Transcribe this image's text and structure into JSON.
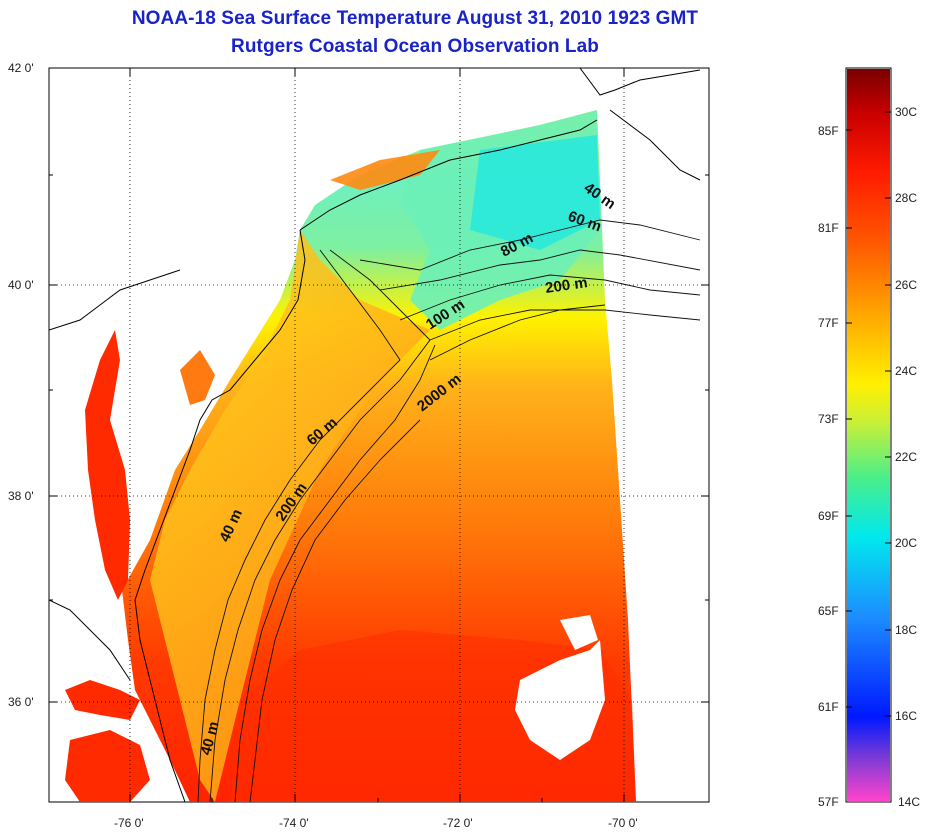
{
  "title": {
    "line1": "NOAA-18 Sea Surface Temperature August 31, 2010 1923 GMT",
    "line2": "Rutgers Coastal Ocean Observation Lab"
  },
  "map": {
    "lat_ticks": [
      "42 0'",
      "40 0'",
      "38 0'",
      "36 0'"
    ],
    "lon_ticks": [
      "-76 0'",
      "-74 0'",
      "-72 0'",
      "-70 0'"
    ],
    "contour_labels": [
      "40 m",
      "60 m",
      "80 m",
      "100 m",
      "200 m",
      "2000 m",
      "60 m",
      "200 m",
      "40 m",
      "40 m"
    ]
  },
  "colorbar": {
    "fahrenheit": [
      "85F",
      "81F",
      "77F",
      "73F",
      "69F",
      "65F",
      "61F",
      "57F"
    ],
    "celsius": [
      "30C",
      "28C",
      "26C",
      "24C",
      "22C",
      "20C",
      "18C",
      "16C",
      "14C"
    ],
    "colors": [
      "#ff44cc",
      "#7a3ad6",
      "#0018ff",
      "#1c8cff",
      "#00e8ee",
      "#48ee8c",
      "#cdf034",
      "#fff000",
      "#ffaa00",
      "#ff5a00",
      "#ff1a00",
      "#c80000",
      "#7a0000"
    ]
  }
}
